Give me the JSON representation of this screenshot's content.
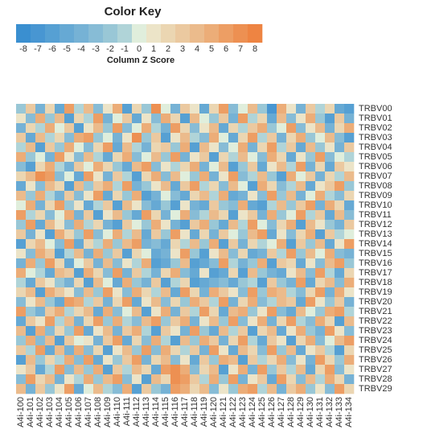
{
  "chart_data": {
    "type": "heatmap",
    "title": "Color Key",
    "colorbar_label": "Column Z Score",
    "zlim": [
      -8,
      8
    ],
    "zticks": [
      -8,
      -7,
      -6,
      -5,
      -4,
      -3,
      -2,
      -1,
      0,
      1,
      2,
      3,
      4,
      5,
      6,
      7,
      8
    ],
    "colors": [
      "#3a8fd0",
      "#4896d2",
      "#56a0d3",
      "#66a9d4",
      "#76b2d5",
      "#87bcd6",
      "#99c7d6",
      "#b0d4d8",
      "#e0eedc",
      "#ece4c8",
      "#ebd6b2",
      "#ebc9a0",
      "#ebbb8c",
      "#ecad78",
      "#ed9e64",
      "#ed9052",
      "#ee8442"
    ],
    "rows": [
      "TRBV00",
      "TRBV01",
      "TRBV02",
      "TRBV03",
      "TRBV04",
      "TRBV05",
      "TRBV06",
      "TRBV07",
      "TRBV08",
      "TRBV09",
      "TRBV10",
      "TRBV11",
      "TRBV12",
      "TRBV13",
      "TRBV14",
      "TRBV15",
      "TRBV16",
      "TRBV17",
      "TRBV18",
      "TRBV19",
      "TRBV20",
      "TRBV21",
      "TRBV22",
      "TRBV23",
      "TRBV24",
      "TRBV25",
      "TRBV26",
      "TRBV27",
      "TRBV28",
      "TRBV29"
    ],
    "columns": [
      "A4i-100",
      "A4i-101",
      "A4i-102",
      "A4i-103",
      "A4i-104",
      "A4i-105",
      "A4i-106",
      "A4i-107",
      "A4i-108",
      "A4i-109",
      "A4i-110",
      "A4i-111",
      "A4i-112",
      "A4i-113",
      "A4i-114",
      "A4i-115",
      "A4i-116",
      "A4i-117",
      "A4i-118",
      "A4i-119",
      "A4i-120",
      "A4i-121",
      "A4i-122",
      "A4i-123",
      "A4i-124",
      "A4i-125",
      "A4i-126",
      "A4i-127",
      "A4i-128",
      "A4i-129",
      "A4i-130",
      "A4i-131",
      "A4i-132",
      "A4i-133",
      "A4i-134"
    ],
    "values": [
      [
        -2,
        3,
        -4,
        2,
        -5,
        6,
        -1,
        4,
        -3,
        1,
        5,
        -6,
        2,
        -2,
        7,
        0,
        -4,
        3,
        1,
        -5,
        2,
        6,
        -3,
        0,
        4,
        -2,
        -7,
        5,
        1,
        -4,
        3,
        -1,
        2,
        -5,
        -6
      ],
      [
        1,
        -3,
        5,
        -2,
        4,
        -6,
        2,
        -1,
        6,
        -4,
        0,
        3,
        -5,
        1,
        -3,
        5,
        2,
        -6,
        4,
        0,
        -2,
        3,
        -4,
        6,
        -1,
        2,
        -5,
        4,
        -3,
        1,
        5,
        -2,
        -6,
        3,
        -4
      ],
      [
        -4,
        2,
        -1,
        5,
        0,
        3,
        -6,
        1,
        4,
        -2,
        6,
        -3,
        0,
        5,
        -1,
        -4,
        6,
        2,
        -3,
        1,
        4,
        -5,
        2,
        -1,
        3,
        5,
        -2,
        0,
        6,
        -3,
        1,
        4,
        -4,
        2,
        5
      ],
      [
        3,
        -5,
        4,
        -1,
        2,
        -3,
        5,
        6,
        -2,
        0,
        -4,
        1,
        7,
        -2,
        3,
        -6,
        1,
        4,
        -1,
        -3,
        5,
        0,
        -5,
        2,
        6,
        -1,
        3,
        -4,
        2,
        5,
        -2,
        0,
        4,
        -3,
        -6
      ],
      [
        -1,
        4,
        -6,
        3,
        -2,
        5,
        0,
        -3,
        2,
        6,
        -5,
        4,
        -1,
        -4,
        2,
        3,
        -2,
        5,
        -6,
        4,
        1,
        -3,
        0,
        5,
        -4,
        2,
        6,
        -1,
        3,
        -5,
        4,
        -2,
        1,
        -4,
        3
      ],
      [
        5,
        -2,
        0,
        -4,
        6,
        1,
        -3,
        4,
        -1,
        -5,
        2,
        5,
        -3,
        0,
        4,
        -2,
        6,
        -4,
        1,
        3,
        -6,
        2,
        -1,
        4,
        0,
        -3,
        5,
        2,
        -5,
        1,
        -2,
        6,
        -3,
        0,
        -1
      ],
      [
        -3,
        -6,
        2,
        5,
        -1,
        -4,
        3,
        0,
        5,
        2,
        -2,
        -5,
        4,
        6,
        -3,
        1,
        -1,
        2,
        5,
        -4,
        0,
        4,
        -6,
        -2,
        3,
        -5,
        1,
        4,
        -1,
        6,
        -4,
        2,
        -5,
        3,
        1
      ],
      [
        2,
        4,
        7,
        6,
        -3,
        0,
        -5,
        6,
        1,
        -4,
        3,
        -1,
        -6,
        2,
        5,
        -3,
        4,
        0,
        -2,
        5,
        -4,
        1,
        6,
        -3,
        -1,
        4,
        -2,
        -6,
        5,
        0,
        3,
        -4,
        2,
        -1,
        4
      ],
      [
        -5,
        1,
        -3,
        4,
        2,
        -6,
        4,
        -2,
        3,
        5,
        -1,
        6,
        -4,
        -2,
        1,
        4,
        -5,
        3,
        6,
        -1,
        2,
        -3,
        4,
        0,
        -6,
        5,
        2,
        -3,
        -1,
        4,
        -5,
        1,
        3,
        6,
        -2
      ],
      [
        4,
        -2,
        5,
        -1,
        -4,
        3,
        -3,
        1,
        6,
        -5,
        2,
        -2,
        5,
        -6,
        -4,
        0,
        -3,
        -5,
        2,
        4,
        -1,
        5,
        -5,
        -4,
        1,
        -3,
        6,
        -2,
        4,
        -4,
        0,
        5,
        -1,
        -3,
        2
      ],
      [
        0,
        5,
        -4,
        2,
        6,
        -2,
        1,
        -5,
        -1,
        3,
        -6,
        4,
        1,
        -3,
        -5,
        -2,
        -6,
        1,
        -4,
        -5,
        3,
        -2,
        -3,
        5,
        -5,
        -6,
        -1,
        4,
        -2,
        3,
        6,
        -4,
        5,
        2,
        -5
      ],
      [
        6,
        -1,
        2,
        -3,
        0,
        5,
        -4,
        3,
        -6,
        1,
        4,
        -2,
        -5,
        6,
        2,
        -4,
        0,
        5,
        -3,
        -1,
        4,
        2,
        -6,
        1,
        3,
        -4,
        5,
        -2,
        0,
        6,
        -1,
        3,
        -5,
        4,
        -3
      ],
      [
        -2,
        6,
        -5,
        4,
        1,
        -3,
        5,
        -1,
        2,
        -4,
        -6,
        3,
        0,
        -2,
        5,
        1,
        -4,
        -6,
        3,
        5,
        -2,
        -5,
        4,
        -1,
        6,
        0,
        -3,
        2,
        5,
        -6,
        4,
        1,
        -2,
        -4,
        3
      ],
      [
        3,
        -4,
        1,
        -6,
        5,
        2,
        -2,
        6,
        -3,
        0,
        5,
        -1,
        4,
        -5,
        3,
        -2,
        6,
        1,
        -5,
        2,
        -4,
        3,
        0,
        -2,
        4,
        6,
        -5,
        1,
        -3,
        2,
        5,
        -6,
        3,
        -1,
        0
      ],
      [
        -6,
        2,
        4,
        0,
        -3,
        6,
        -5,
        2,
        -1,
        5,
        -2,
        4,
        6,
        -4,
        -3,
        -5,
        2,
        -1,
        4,
        -2,
        5,
        -6,
        3,
        -4,
        2,
        -1,
        0,
        5,
        -6,
        3,
        -2,
        4,
        -5,
        1,
        6
      ],
      [
        1,
        -3,
        5,
        3,
        -6,
        -1,
        4,
        -4,
        5,
        -2,
        3,
        -6,
        2,
        0,
        -5,
        -4,
        1,
        6,
        -2,
        -6,
        1,
        4,
        -3,
        2,
        -5,
        -4,
        3,
        -1,
        6,
        -2,
        4,
        0,
        5,
        -3,
        -4
      ],
      [
        -4,
        5,
        -2,
        6,
        2,
        -5,
        0,
        3,
        -4,
        4,
        -3,
        1,
        -1,
        5,
        -6,
        -5,
        -2,
        4,
        -6,
        -5,
        -3,
        6,
        -1,
        -4,
        -2,
        5,
        -6,
        3,
        2,
        -5,
        1,
        -3,
        4,
        6,
        -2
      ],
      [
        5,
        0,
        -1,
        -5,
        4,
        3,
        -6,
        5,
        2,
        -3,
        6,
        -4,
        3,
        -1,
        -4,
        2,
        5,
        -3,
        -5,
        1,
        -6,
        -5,
        2,
        -6,
        4,
        -2,
        -4,
        -5,
        1,
        4,
        -3,
        6,
        -1,
        -5,
        2
      ],
      [
        -1,
        -5,
        3,
        1,
        -2,
        -4,
        2,
        -6,
        4,
        0,
        -5,
        5,
        -2,
        -4,
        3,
        -6,
        -1,
        2,
        -6,
        -5,
        -4,
        -3,
        -5,
        -2,
        -1,
        -6,
        3,
        -2,
        -4,
        6,
        -5,
        2,
        4,
        -3,
        5
      ],
      [
        2,
        4,
        -6,
        5,
        3,
        1,
        -3,
        4,
        -2,
        6,
        1,
        -3,
        5,
        2,
        -1,
        4,
        -5,
        6,
        2,
        -4,
        5,
        3,
        1,
        -3,
        6,
        -2,
        5,
        4,
        -1,
        -3,
        2,
        6,
        -4,
        5,
        1
      ],
      [
        -3,
        1,
        4,
        -2,
        -5,
        6,
        5,
        -1,
        3,
        -4,
        2,
        6,
        -5,
        1,
        4,
        -3,
        2,
        -2,
        5,
        3,
        -1,
        6,
        -4,
        2,
        5,
        -3,
        -1,
        4,
        3,
        -5,
        6,
        1,
        -2,
        3,
        -4
      ],
      [
        6,
        -2,
        -4,
        3,
        5,
        -1,
        2,
        4,
        -5,
        5,
        -3,
        0,
        4,
        -6,
        1,
        5,
        -4,
        3,
        -1,
        6,
        2,
        -5,
        4,
        5,
        -2,
        1,
        6,
        -3,
        -5,
        4,
        0,
        -2,
        5,
        6,
        -1
      ],
      [
        -5,
        3,
        1,
        6,
        -1,
        4,
        -4,
        2,
        6,
        -2,
        5,
        -1,
        -3,
        4,
        6,
        -2,
        3,
        5,
        -4,
        1,
        4,
        -2,
        6,
        -3,
        1,
        5,
        -4,
        2,
        6,
        -1,
        -3,
        5,
        2,
        -6,
        4
      ],
      [
        4,
        -6,
        5,
        -3,
        2,
        -2,
        6,
        -5,
        1,
        4,
        -4,
        3,
        5,
        -1,
        -6,
        3,
        1,
        -4,
        6,
        -2,
        -5,
        4,
        -1,
        3,
        -6,
        2,
        4,
        -5,
        1,
        5,
        -2,
        -4,
        6,
        1,
        -3
      ],
      [
        -2,
        5,
        -3,
        4,
        -6,
        3,
        0,
        1,
        -4,
        3,
        6,
        -5,
        2,
        -3,
        5,
        -1,
        -6,
        4,
        -2,
        5,
        3,
        -4,
        2,
        6,
        -1,
        -5,
        3,
        1,
        -6,
        2,
        5,
        -3,
        0,
        4,
        6
      ],
      [
        3,
        -1,
        6,
        -5,
        4,
        -4,
        5,
        -3,
        2,
        -6,
        1,
        4,
        -2,
        6,
        -3,
        5,
        2,
        -1,
        3,
        -4,
        6,
        1,
        -5,
        4,
        2,
        -3,
        6,
        -2,
        4,
        -5,
        1,
        3,
        -1,
        -6,
        2
      ],
      [
        -6,
        4,
        -2,
        2,
        -1,
        5,
        -3,
        6,
        -5,
        1,
        -2,
        3,
        6,
        -4,
        2,
        4,
        -3,
        1,
        -5,
        3,
        -2,
        5,
        4,
        -6,
        3,
        -1,
        2,
        5,
        -3,
        1,
        -4,
        6,
        2,
        -2,
        5
      ],
      [
        1,
        3,
        -5,
        -1,
        6,
        -3,
        4,
        -2,
        5,
        -6,
        3,
        -1,
        4,
        2,
        -5,
        6,
        7,
        5,
        -3,
        2,
        4,
        -6,
        1,
        5,
        -4,
        6,
        -2,
        3,
        -1,
        4,
        -5,
        2,
        6,
        -3,
        1
      ],
      [
        -3,
        6,
        2,
        4,
        -4,
        1,
        -1,
        5,
        -2,
        4,
        6,
        -3,
        1,
        -6,
        4,
        2,
        7,
        6,
        3,
        -1,
        5,
        -2,
        6,
        -4,
        1,
        3,
        -5,
        6,
        2,
        -3,
        4,
        -1,
        5,
        2,
        -4
      ],
      [
        4,
        -4,
        3,
        -2,
        1,
        6,
        -5,
        0,
        4,
        -1,
        -3,
        5,
        -6,
        3,
        -2,
        -4,
        6,
        5,
        2,
        4,
        -3,
        1,
        -2,
        5,
        6,
        -1,
        4,
        -4,
        3,
        5,
        -2,
        1,
        -3,
        6,
        2
      ]
    ]
  }
}
